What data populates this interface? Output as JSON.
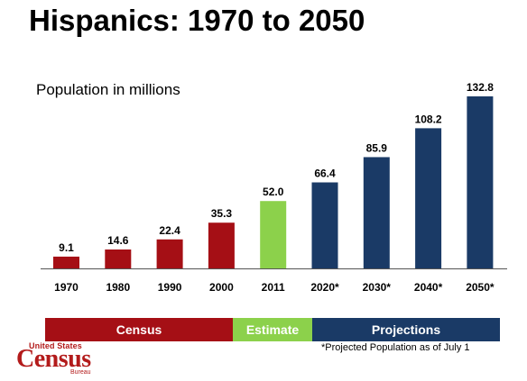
{
  "title": "Hispanics: 1970 to 2050",
  "subtitle": "Population in millions",
  "colors": {
    "census": "#a50f15",
    "estimate": "#8cd14b",
    "projection": "#1a3a66",
    "legend_census": "#a50f15",
    "legend_estimate": "#8cd14b",
    "legend_projection": "#1a3a66"
  },
  "legend": {
    "census": "Census",
    "estimate": "Estimate",
    "projections": "Projections"
  },
  "footnote": "*Projected Population as of July 1",
  "logo": {
    "top": "United States",
    "main": "Census",
    "bottom": "Bureau"
  },
  "chart_data": {
    "type": "bar",
    "title": "Hispanics: 1970 to 2050",
    "subtitle": "Population in millions",
    "categories": [
      "1970",
      "1980",
      "1990",
      "2000",
      "2011",
      "2020*",
      "2030*",
      "2040*",
      "2050*"
    ],
    "values": [
      9.1,
      14.6,
      22.4,
      35.3,
      52.0,
      66.4,
      85.9,
      108.2,
      132.8
    ],
    "value_labels": [
      "9.1",
      "14.6",
      "22.4",
      "35.3",
      "52.0",
      "66.4",
      "85.9",
      "108.2",
      "132.8"
    ],
    "groups": [
      "census",
      "census",
      "census",
      "census",
      "estimate",
      "projection",
      "projection",
      "projection",
      "projection"
    ],
    "ylim": [
      0,
      132.8
    ]
  }
}
